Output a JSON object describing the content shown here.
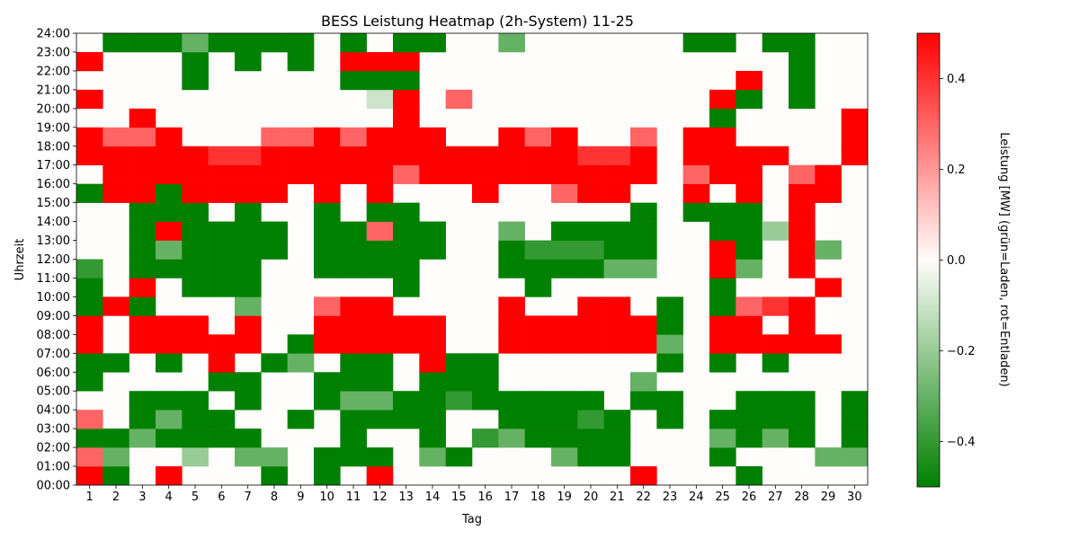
{
  "chart_data": {
    "type": "heatmap",
    "title": "BESS Leistung Heatmap (2h-System) 11-25",
    "xlabel": "Tag",
    "ylabel": "Uhrzeit",
    "x": [
      1,
      2,
      3,
      4,
      5,
      6,
      7,
      8,
      9,
      10,
      11,
      12,
      13,
      14,
      15,
      16,
      17,
      18,
      19,
      20,
      21,
      22,
      23,
      24,
      25,
      26,
      27,
      28,
      29,
      30
    ],
    "y_ticks": [
      "00:00",
      "01:00",
      "02:00",
      "03:00",
      "04:00",
      "05:00",
      "06:00",
      "07:00",
      "08:00",
      "09:00",
      "10:00",
      "11:00",
      "12:00",
      "13:00",
      "14:00",
      "15:00",
      "16:00",
      "17:00",
      "18:00",
      "19:00",
      "20:00",
      "21:00",
      "22:00",
      "23:00",
      "24:00"
    ],
    "y_range": [
      "00:00",
      "24:00"
    ],
    "colorbar": {
      "label": "Leistung [MW] (grün=Laden, rot=Entladen)",
      "range": [
        -0.5,
        0.5
      ],
      "ticks": [
        -0.4,
        -0.2,
        0.0,
        0.2,
        0.4
      ],
      "colors": {
        "low": "#008000",
        "mid": "#fffdfb",
        "high": "#ff0000"
      }
    },
    "values_unit": "MW",
    "values_by_day_hour": [
      [
        0.5,
        0.3,
        -0.5,
        0.3,
        0,
        -0.5,
        -0.5,
        0.5,
        0.5,
        -0.5,
        -0.5,
        -0.4,
        0,
        0,
        0,
        -0.5,
        0,
        0.5,
        0.5,
        0,
        0.5,
        0,
        0.5,
        0
      ],
      [
        -0.5,
        -0.3,
        -0.5,
        0,
        0,
        0,
        -0.5,
        0,
        0,
        0.5,
        0,
        0,
        0,
        0,
        0,
        0.5,
        0.5,
        0.5,
        0.3,
        0,
        0,
        0,
        0,
        -0.5
      ],
      [
        0,
        0,
        -0.3,
        -0.5,
        -0.5,
        0,
        0,
        0.5,
        0.5,
        -0.5,
        0.5,
        -0.5,
        -0.5,
        -0.5,
        -0.5,
        0.5,
        0.5,
        0.5,
        0.3,
        0.5,
        0,
        0,
        0,
        -0.5
      ],
      [
        0.5,
        0,
        -0.5,
        -0.3,
        -0.5,
        0,
        -0.5,
        0.5,
        0.5,
        0,
        0,
        -0.5,
        -0.3,
        0.5,
        -0.5,
        -0.5,
        0.5,
        0.5,
        0.5,
        0,
        0,
        0,
        0,
        -0.5
      ],
      [
        0,
        -0.2,
        -0.5,
        -0.5,
        -0.5,
        0,
        0,
        0.5,
        0.5,
        0,
        -0.5,
        -0.5,
        -0.5,
        -0.5,
        -0.5,
        0.5,
        0.5,
        0.5,
        0,
        0,
        0,
        -0.5,
        -0.5,
        -0.3
      ],
      [
        0,
        0,
        -0.5,
        -0.5,
        0,
        -0.5,
        0.5,
        0.5,
        0,
        0,
        -0.5,
        -0.5,
        -0.5,
        -0.5,
        0,
        0.5,
        0.5,
        0.4,
        0,
        0,
        0,
        0,
        0,
        -0.5
      ],
      [
        0,
        -0.3,
        -0.5,
        0,
        -0.5,
        -0.5,
        0,
        0.5,
        0.5,
        -0.3,
        -0.5,
        -0.5,
        -0.5,
        -0.5,
        -0.5,
        0.5,
        0.5,
        0.4,
        0,
        0,
        0,
        0,
        -0.5,
        -0.5
      ],
      [
        -0.5,
        -0.3,
        0,
        0,
        0,
        0,
        -0.5,
        0,
        0,
        0,
        0,
        0,
        -0.5,
        -0.5,
        0,
        0.5,
        0.5,
        0.5,
        0.3,
        0,
        0,
        0,
        0,
        -0.5
      ],
      [
        0,
        0,
        0,
        -0.5,
        0,
        0,
        -0.3,
        -0.5,
        0,
        0,
        0,
        0,
        0,
        0,
        0,
        0,
        0.5,
        0.5,
        0.3,
        0,
        0,
        0,
        -0.5,
        -0.5
      ],
      [
        -0.5,
        -0.5,
        0,
        0,
        -0.5,
        -0.5,
        0,
        0.5,
        0.5,
        0.3,
        0,
        -0.5,
        -0.5,
        -0.5,
        -0.5,
        0.5,
        0.5,
        0.5,
        0.5,
        0,
        0,
        0,
        0,
        0
      ],
      [
        0,
        -0.5,
        -0.5,
        -0.5,
        -0.3,
        -0.5,
        -0.5,
        0.5,
        0.5,
        0.5,
        0,
        -0.5,
        -0.5,
        -0.5,
        0,
        0,
        0.5,
        0.5,
        0.3,
        0,
        0,
        -0.5,
        0.5,
        -0.5
      ],
      [
        0.5,
        -0.5,
        0,
        -0.5,
        -0.3,
        -0.5,
        -0.5,
        0.5,
        0.5,
        0.5,
        0,
        -0.5,
        -0.5,
        0.3,
        -0.5,
        0.5,
        0.5,
        0.5,
        0.5,
        0,
        -0.1,
        -0.5,
        0.5,
        0
      ],
      [
        0,
        0,
        0,
        -0.5,
        -0.5,
        0,
        0,
        0.5,
        0.5,
        0,
        -0.5,
        -0.5,
        -0.5,
        -0.5,
        -0.5,
        0,
        0.3,
        0.5,
        0.5,
        0.5,
        0.5,
        -0.5,
        0.5,
        -0.5
      ],
      [
        0,
        -0.3,
        -0.5,
        -0.5,
        -0.5,
        -0.5,
        0.5,
        0.5,
        0.5,
        0,
        0,
        0,
        -0.5,
        -0.5,
        0,
        0,
        0.5,
        0.5,
        0.5,
        0,
        0,
        0,
        0,
        -0.5
      ],
      [
        0,
        -0.5,
        0,
        0,
        -0.4,
        -0.5,
        -0.5,
        0,
        0,
        0,
        0,
        0,
        0,
        0,
        0,
        0,
        0.5,
        0.5,
        0,
        0,
        0.3,
        0,
        0,
        0
      ],
      [
        0,
        0,
        -0.4,
        0,
        -0.5,
        -0.5,
        -0.5,
        0,
        0,
        0,
        0,
        0,
        0,
        0,
        0,
        0.5,
        0.5,
        0.5,
        0,
        0,
        0,
        0,
        0,
        0
      ],
      [
        0,
        0,
        -0.3,
        -0.5,
        -0.5,
        0,
        0,
        0.5,
        0.5,
        0.5,
        0,
        -0.5,
        -0.5,
        -0.3,
        0,
        0,
        0.5,
        0.5,
        0.5,
        0,
        0,
        0,
        0,
        -0.3
      ],
      [
        0,
        0,
        -0.5,
        -0.5,
        -0.5,
        0,
        0,
        0.5,
        0.5,
        0,
        -0.5,
        -0.5,
        -0.4,
        0,
        0,
        0,
        0.5,
        0.5,
        0.3,
        0,
        0,
        0,
        0,
        0
      ],
      [
        0,
        -0.3,
        -0.5,
        -0.5,
        -0.5,
        0,
        0,
        0.5,
        0.5,
        0,
        0,
        -0.5,
        -0.4,
        -0.5,
        0,
        0.3,
        0.5,
        0.5,
        0.5,
        0,
        0,
        0,
        0,
        0
      ],
      [
        0,
        -0.5,
        -0.5,
        -0.4,
        -0.5,
        0,
        0,
        0.5,
        0.5,
        0.5,
        0,
        -0.5,
        -0.4,
        -0.5,
        0,
        0.5,
        0.5,
        0.4,
        0,
        0,
        0,
        0,
        0,
        0
      ],
      [
        0,
        -0.5,
        -0.5,
        -0.5,
        0,
        0,
        0,
        0.5,
        0.5,
        0.5,
        0,
        -0.3,
        -0.5,
        -0.5,
        0,
        0.5,
        0.5,
        0.4,
        0,
        0,
        0,
        0,
        0,
        0
      ],
      [
        0.5,
        0,
        0,
        0,
        -0.5,
        -0.3,
        0,
        0.5,
        0.5,
        0,
        0,
        -0.3,
        -0.5,
        -0.5,
        -0.5,
        0,
        0.5,
        0.5,
        0.3,
        0,
        0,
        0,
        0,
        0
      ],
      [
        0,
        0,
        0,
        -0.5,
        -0.5,
        0,
        -0.5,
        -0.3,
        -0.5,
        -0.5,
        0,
        0,
        0,
        0,
        0,
        0,
        0,
        0,
        0,
        0,
        0,
        0,
        0,
        0
      ],
      [
        0,
        0,
        0,
        0,
        0,
        0,
        0,
        0,
        0,
        0,
        0,
        0,
        0,
        0,
        -0.5,
        0.5,
        0.3,
        0.5,
        0.5,
        0,
        0,
        0,
        0,
        -0.5
      ],
      [
        0,
        -0.5,
        -0.3,
        -0.5,
        0,
        0,
        -0.5,
        0.5,
        0.5,
        -0.5,
        -0.5,
        0.5,
        0.5,
        -0.5,
        -0.5,
        0,
        0.5,
        0.5,
        0.5,
        -0.5,
        0.5,
        0,
        0,
        -0.5
      ],
      [
        -0.5,
        0,
        -0.5,
        -0.5,
        -0.5,
        0,
        0,
        0.5,
        0.5,
        0.3,
        0,
        -0.3,
        -0.5,
        -0.5,
        -0.5,
        0.5,
        0.5,
        0.5,
        0,
        0,
        -0.5,
        0.5,
        0,
        0
      ],
      [
        0,
        0,
        -0.3,
        -0.5,
        -0.5,
        0,
        -0.5,
        0.5,
        0,
        0.4,
        0,
        0,
        0,
        -0.2,
        0,
        0,
        0,
        0.5,
        0,
        0,
        0,
        0,
        0,
        -0.5
      ],
      [
        0,
        0,
        -0.5,
        -0.5,
        -0.5,
        0,
        0,
        0.5,
        0.5,
        0.5,
        0,
        0.5,
        0.5,
        0.5,
        0.5,
        0.5,
        0.3,
        0,
        0,
        0,
        -0.5,
        -0.5,
        -0.5,
        -0.5
      ],
      [
        0,
        -0.3,
        0,
        0,
        0,
        0,
        0,
        0.5,
        0,
        0,
        0.5,
        0,
        -0.3,
        0,
        0,
        0.5,
        0.5,
        0,
        0,
        0,
        0,
        0,
        0,
        0
      ],
      [
        0,
        -0.3,
        -0.5,
        -0.5,
        -0.5,
        0,
        0,
        0,
        0,
        0,
        0,
        0,
        0,
        0,
        0,
        0,
        0,
        0.5,
        0.5,
        0.5,
        0,
        0,
        0,
        0
      ]
    ]
  }
}
